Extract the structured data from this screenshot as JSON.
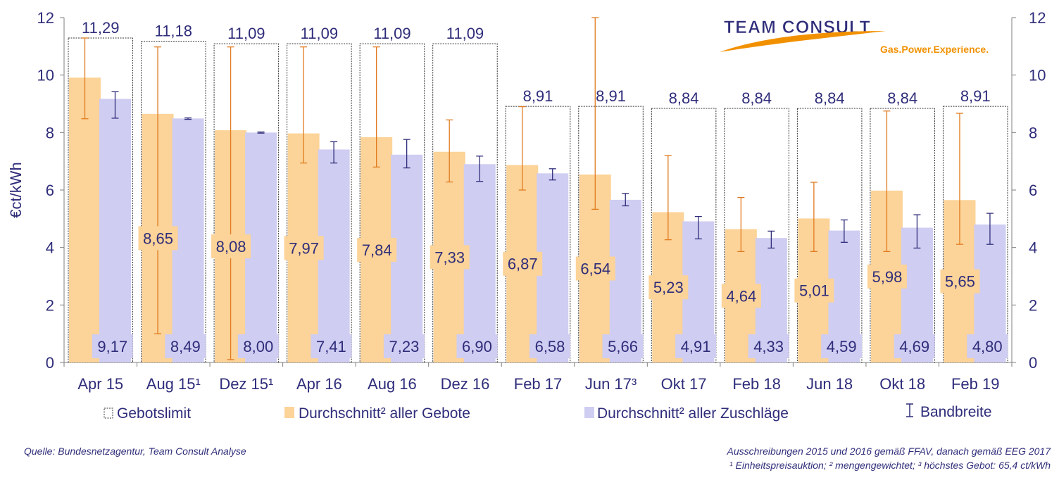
{
  "chart_data": {
    "type": "bar",
    "ylabel": "€ct/kWh",
    "ylim": [
      0,
      12
    ],
    "yticks": [
      0,
      2,
      4,
      6,
      8,
      10,
      12
    ],
    "ytick_labels": [
      "0",
      "2",
      "4",
      "6",
      "8",
      "10",
      "12"
    ],
    "categories": [
      "Apr 15",
      "Aug 15¹",
      "Dez 15¹",
      "Apr 16",
      "Aug 16",
      "Dez 16",
      "Feb 17",
      "Jun 17³",
      "Okt 17",
      "Feb 18",
      "Jun 18",
      "Okt 18",
      "Feb 19"
    ],
    "series": [
      {
        "name": "Gebotslimit",
        "values": [
          11.29,
          11.18,
          11.09,
          11.09,
          11.09,
          11.09,
          8.91,
          8.91,
          8.84,
          8.84,
          8.84,
          8.84,
          8.91
        ],
        "labels": [
          "11,29",
          "11,18",
          "11,09",
          "11,09",
          "11,09",
          "11,09",
          "8,91",
          "8,91",
          "8,84",
          "8,84",
          "8,84",
          "8,84",
          "8,91"
        ]
      },
      {
        "name": "Durchschnitt² aller Gebote",
        "values": [
          9.91,
          8.65,
          8.08,
          7.97,
          7.84,
          7.33,
          6.87,
          6.54,
          5.23,
          4.64,
          5.01,
          5.98,
          5.65
        ],
        "labels": [
          "",
          "8,65",
          "8,08",
          "7,97",
          "7,84",
          "7,33",
          "6,87",
          "6,54",
          "5,23",
          "4,64",
          "5,01",
          "5,98",
          "5,65"
        ],
        "range_low": [
          8.48,
          1.0,
          0.1,
          6.94,
          6.8,
          6.28,
          6.0,
          5.33,
          4.27,
          3.86,
          3.86,
          3.86,
          4.11
        ],
        "range_high": [
          11.29,
          10.98,
          10.98,
          10.98,
          10.98,
          8.44,
          8.9,
          12.0,
          7.2,
          5.74,
          6.27,
          8.75,
          8.67
        ],
        "color": "#fcd398",
        "range_color": "#e07b20"
      },
      {
        "name": "Durchschnitt² aller Zuschläge",
        "values": [
          9.17,
          8.49,
          8.0,
          7.41,
          7.23,
          6.9,
          6.58,
          5.66,
          4.91,
          4.33,
          4.59,
          4.69,
          4.8
        ],
        "labels": [
          "9,17",
          "8,49",
          "8,00",
          "7,41",
          "7,23",
          "6,90",
          "6,58",
          "5,66",
          "4,91",
          "4,33",
          "4,59",
          "4,69",
          "4,80"
        ],
        "range_low": [
          8.5,
          8.46,
          7.98,
          6.94,
          6.77,
          6.3,
          6.35,
          5.45,
          4.3,
          3.98,
          4.18,
          3.98,
          4.11
        ],
        "range_high": [
          9.42,
          8.51,
          8.02,
          7.68,
          7.76,
          7.18,
          6.74,
          5.88,
          5.08,
          4.57,
          4.96,
          5.14,
          5.19
        ],
        "color": "#cfcdf1",
        "range_color": "#2f2d7a"
      }
    ],
    "legend": {
      "position": "bottom",
      "items": [
        "Gebotslimit",
        "Durchschnitt² aller Gebote",
        "Durchschnitt² aller Zuschläge",
        "Bandbreite"
      ]
    },
    "grid": false,
    "secondary_y_axis": true
  },
  "logo": {
    "title": "TEAM CONSULT",
    "tagline": "Gas.Power.Experience."
  },
  "source": "Quelle: Bundesnetzagentur,  Team Consult Analyse",
  "notes": [
    "Ausschreibungen 2015 und 2016 gemäß FFAV, danach gemäß EEG 2017",
    "¹ Einheitspreisauktion; ² mengengewichtet;  ³ höchstes Gebot: 65,4 ct/kWh"
  ],
  "colors": {
    "text": "#2f2d7a",
    "axis": "#7f7f7f",
    "logo_orange": "#f29100"
  }
}
